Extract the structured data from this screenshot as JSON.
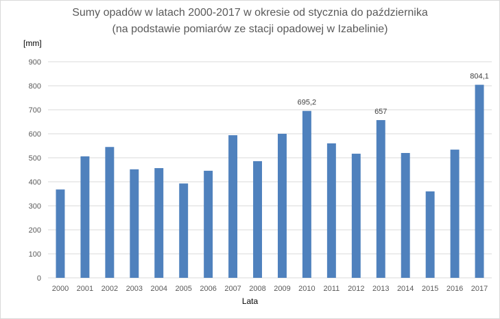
{
  "chart_data": {
    "type": "bar",
    "title": "Sumy opadów w latach 2000-2017 w okresie od stycznia do października",
    "subtitle": "(na podstawie pomiarów ze stacji opadowej w Izabelinie)",
    "ylabel": "[mm]",
    "xlabel": "Lata",
    "ylim": [
      0,
      900
    ],
    "yticks": [
      0,
      100,
      200,
      300,
      400,
      500,
      600,
      700,
      800,
      900
    ],
    "grid": true,
    "categories": [
      "2000",
      "2001",
      "2002",
      "2003",
      "2004",
      "2005",
      "2006",
      "2007",
      "2008",
      "2009",
      "2010",
      "2011",
      "2012",
      "2013",
      "2014",
      "2015",
      "2016",
      "2017"
    ],
    "values": [
      368,
      506,
      545,
      452,
      457,
      393,
      446,
      594,
      486,
      600,
      695.2,
      560,
      517,
      657,
      520,
      360,
      534,
      804.1
    ],
    "data_labels": [
      {
        "category": "2010",
        "text": "695,2"
      },
      {
        "category": "2013",
        "text": "657"
      },
      {
        "category": "2017",
        "text": "804,1"
      }
    ],
    "colors": {
      "bar": "#4f81bd",
      "grid": "#d9d9d9",
      "axis_text": "#595959",
      "title": "#595959"
    }
  }
}
